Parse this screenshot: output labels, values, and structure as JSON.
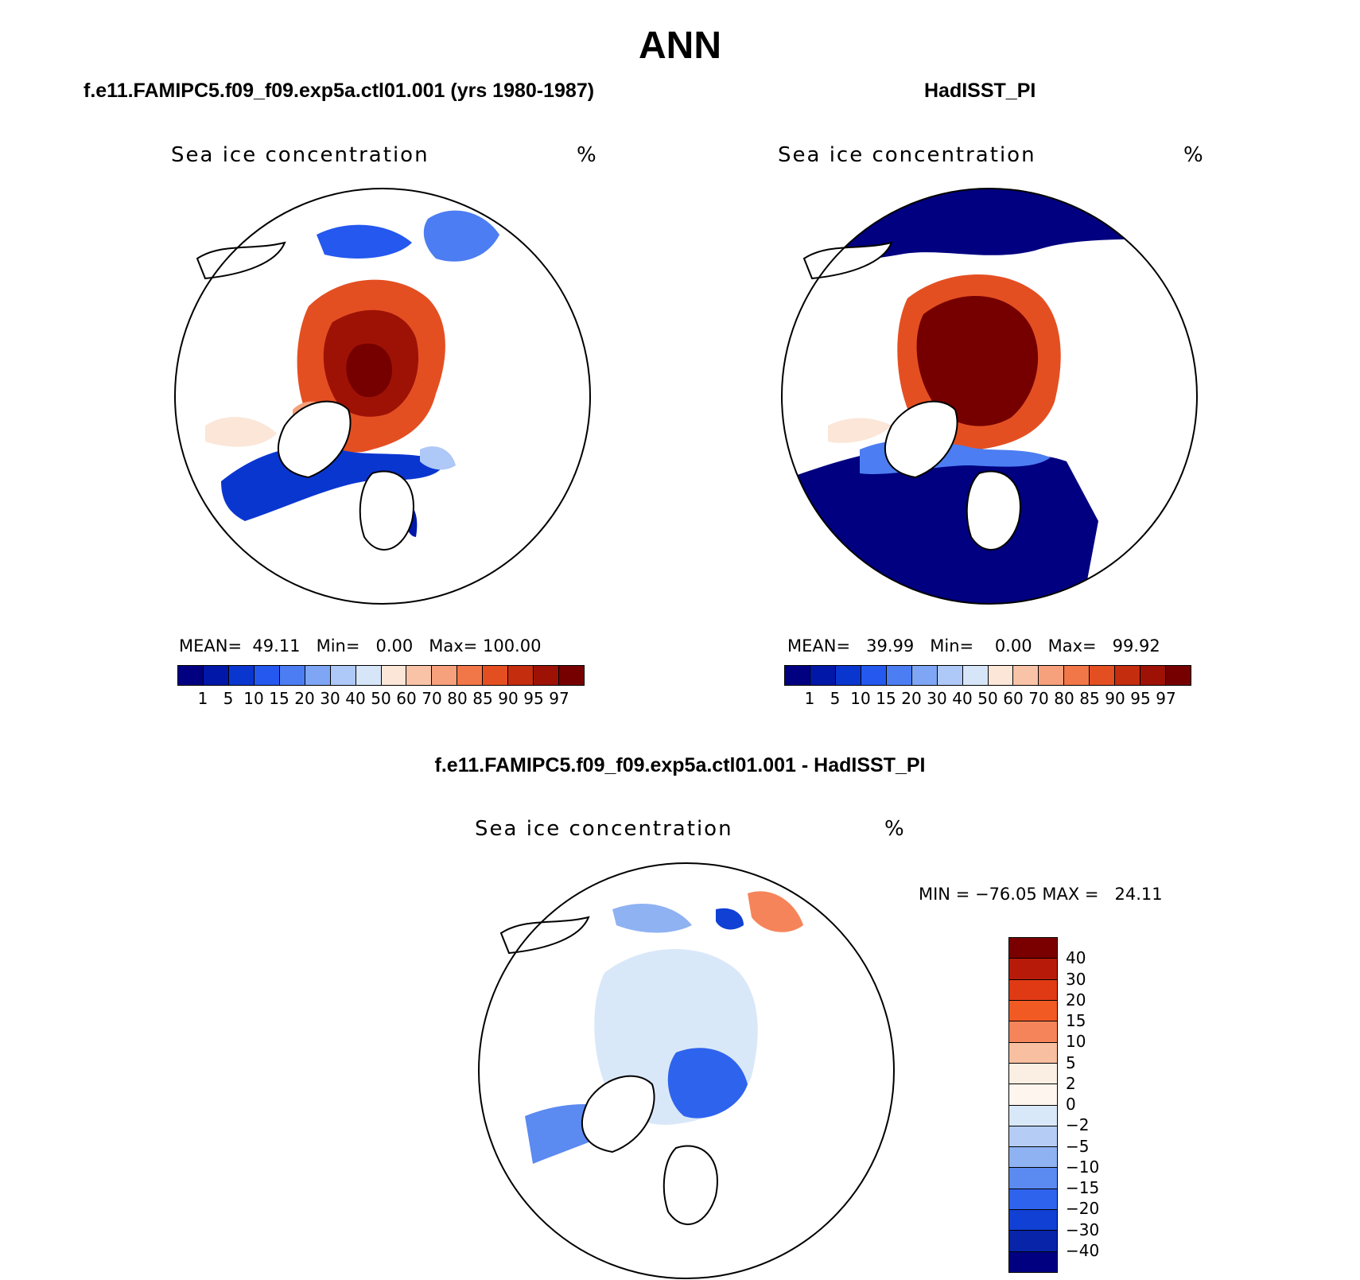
{
  "title": "ANN",
  "panels": [
    {
      "case": "f.e11.FAMIPC5.f09_f09.exp5a.ctl01.001 (yrs 1980-1987)",
      "variable": "Sea ice concentration",
      "units": "%",
      "stats": {
        "mean_label": "MEAN=",
        "mean": "49.11",
        "min_label": "Min=",
        "min": "0.00",
        "max_label": "Max=",
        "max": "100.00"
      }
    },
    {
      "case": "HadISST_PI",
      "variable": "Sea ice concentration",
      "units": "%",
      "stats": {
        "mean_label": "MEAN=",
        "mean": "39.99",
        "min_label": "Min=",
        "min": "0.00",
        "max_label": "Max=",
        "max": "99.92"
      }
    }
  ],
  "diff_panel": {
    "title": "f.e11.FAMIPC5.f09_f09.exp5a.ctl01.001 - HadISST_PI",
    "variable": "Sea ice concentration",
    "units": "%",
    "minmax": "MIN = −76.05 MAX =   24.11"
  },
  "colorbar_abs": {
    "labels": [
      "1",
      "5",
      "10",
      "15",
      "20",
      "30",
      "40",
      "50",
      "60",
      "70",
      "80",
      "85",
      "90",
      "95",
      "97"
    ],
    "colors": [
      "#000080",
      "#0017a8",
      "#0a36d0",
      "#2458ee",
      "#4c7df2",
      "#7fa6f5",
      "#aec8f7",
      "#d6e6f8",
      "#fbe6d8",
      "#f9c3a8",
      "#f6a07c",
      "#f27748",
      "#e44f22",
      "#c42d0e",
      "#9e1206",
      "#760000"
    ]
  },
  "colorbar_diff": {
    "labels": [
      "40",
      "30",
      "20",
      "15",
      "10",
      "5",
      "2",
      "0",
      "−2",
      "−5",
      "−10",
      "−15",
      "−20",
      "−30",
      "−40"
    ],
    "colors": [
      "#7a0000",
      "#b81a0a",
      "#e03a14",
      "#f25a24",
      "#f6845a",
      "#f8bfa0",
      "#fbeee2",
      "#d9e8f8",
      "#b5cdf5",
      "#8fb2f2",
      "#5b8af0",
      "#2e63ee",
      "#1140d4",
      "#0824a8",
      "#000080"
    ]
  }
}
